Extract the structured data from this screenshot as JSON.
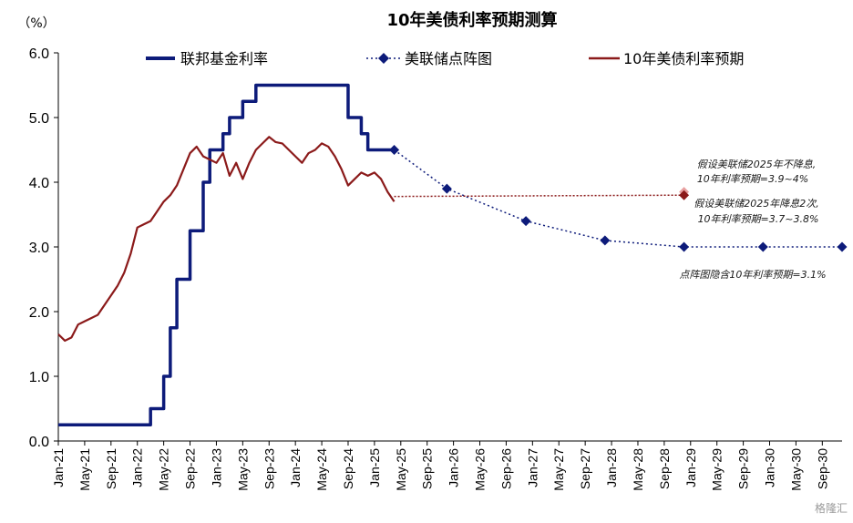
{
  "chart_data": {
    "type": "line",
    "title": "10年美债利率预期测算",
    "ylabel": "（%）",
    "ylim": [
      0,
      6
    ],
    "yticks": [
      "0.0",
      "1.0",
      "2.0",
      "3.0",
      "4.0",
      "5.0",
      "6.0"
    ],
    "x_range": [
      "2021-01",
      "2030-12"
    ],
    "xtick_labels": [
      "Jan-21",
      "May-21",
      "Sep-21",
      "Jan-22",
      "May-22",
      "Sep-22",
      "Jan-23",
      "May-23",
      "Sep-23",
      "Jan-24",
      "May-24",
      "Sep-24",
      "Jan-25",
      "May-25",
      "Sep-25",
      "Jan-26",
      "May-26",
      "Sep-26",
      "Jan-27",
      "May-27",
      "Sep-27",
      "Jan-28",
      "May-28",
      "Sep-28",
      "Jan-29",
      "May-29",
      "Sep-29",
      "Jan-30",
      "May-30",
      "Sep-30"
    ],
    "legend_placement": "top",
    "grid": false,
    "series": [
      {
        "name": "联邦基金利率",
        "color": "#0d1b7a",
        "style": "solid-step",
        "points": [
          [
            "2021-01",
            0.25
          ],
          [
            "2022-03",
            0.25
          ],
          [
            "2022-03",
            0.5
          ],
          [
            "2022-05",
            0.5
          ],
          [
            "2022-05",
            1.0
          ],
          [
            "2022-06",
            1.0
          ],
          [
            "2022-06",
            1.75
          ],
          [
            "2022-07",
            1.75
          ],
          [
            "2022-07",
            2.5
          ],
          [
            "2022-09",
            2.5
          ],
          [
            "2022-09",
            3.25
          ],
          [
            "2022-11",
            3.25
          ],
          [
            "2022-11",
            4.0
          ],
          [
            "2022-12",
            4.0
          ],
          [
            "2022-12",
            4.5
          ],
          [
            "2023-02",
            4.5
          ],
          [
            "2023-02",
            4.75
          ],
          [
            "2023-03",
            4.75
          ],
          [
            "2023-03",
            5.0
          ],
          [
            "2023-05",
            5.0
          ],
          [
            "2023-05",
            5.25
          ],
          [
            "2023-07",
            5.25
          ],
          [
            "2023-07",
            5.5
          ],
          [
            "2024-09",
            5.5
          ],
          [
            "2024-09",
            5.0
          ],
          [
            "2024-11",
            5.0
          ],
          [
            "2024-11",
            4.75
          ],
          [
            "2024-12",
            4.75
          ],
          [
            "2024-12",
            4.5
          ],
          [
            "2025-04",
            4.5
          ]
        ]
      },
      {
        "name": "美联储点阵图",
        "color": "#0d1b7a",
        "style": "dotted-diamond",
        "points": [
          [
            "2025-04",
            4.5
          ],
          [
            "2025-12",
            3.9
          ],
          [
            "2026-12",
            3.4
          ],
          [
            "2027-12",
            3.1
          ],
          [
            "2028-12",
            3.0
          ],
          [
            "2029-12",
            3.0
          ],
          [
            "2030-12",
            3.0
          ]
        ]
      },
      {
        "name": "10年美债利率预期",
        "color": "#8b1a1a",
        "style": "solid",
        "points": [
          [
            "2021-01",
            1.65
          ],
          [
            "2021-02",
            1.55
          ],
          [
            "2021-03",
            1.6
          ],
          [
            "2021-04",
            1.8
          ],
          [
            "2021-05",
            1.85
          ],
          [
            "2021-06",
            1.9
          ],
          [
            "2021-07",
            1.95
          ],
          [
            "2021-08",
            2.1
          ],
          [
            "2021-09",
            2.25
          ],
          [
            "2021-10",
            2.4
          ],
          [
            "2021-11",
            2.6
          ],
          [
            "2021-12",
            2.9
          ],
          [
            "2022-01",
            3.3
          ],
          [
            "2022-02",
            3.35
          ],
          [
            "2022-03",
            3.4
          ],
          [
            "2022-04",
            3.55
          ],
          [
            "2022-05",
            3.7
          ],
          [
            "2022-06",
            3.8
          ],
          [
            "2022-07",
            3.95
          ],
          [
            "2022-08",
            4.2
          ],
          [
            "2022-09",
            4.45
          ],
          [
            "2022-10",
            4.55
          ],
          [
            "2022-11",
            4.4
          ],
          [
            "2022-12",
            4.35
          ],
          [
            "2023-01",
            4.3
          ],
          [
            "2023-02",
            4.45
          ],
          [
            "2023-03",
            4.1
          ],
          [
            "2023-04",
            4.3
          ],
          [
            "2023-05",
            4.05
          ],
          [
            "2023-06",
            4.3
          ],
          [
            "2023-07",
            4.5
          ],
          [
            "2023-08",
            4.6
          ],
          [
            "2023-09",
            4.7
          ],
          [
            "2023-10",
            4.62
          ],
          [
            "2023-11",
            4.6
          ],
          [
            "2023-12",
            4.5
          ],
          [
            "2024-01",
            4.4
          ],
          [
            "2024-02",
            4.3
          ],
          [
            "2024-03",
            4.45
          ],
          [
            "2024-04",
            4.5
          ],
          [
            "2024-05",
            4.6
          ],
          [
            "2024-06",
            4.55
          ],
          [
            "2024-07",
            4.4
          ],
          [
            "2024-08",
            4.2
          ],
          [
            "2024-09",
            3.95
          ],
          [
            "2024-10",
            4.05
          ],
          [
            "2024-11",
            4.15
          ],
          [
            "2024-12",
            4.1
          ],
          [
            "2025-01",
            4.15
          ],
          [
            "2025-02",
            4.05
          ],
          [
            "2025-03",
            3.85
          ],
          [
            "2025-04",
            3.7
          ]
        ]
      },
      {
        "name": "10年美债利率预期（假设）",
        "color": "#8b1a1a",
        "style": "dotted",
        "points": [
          [
            "2025-04",
            3.78
          ],
          [
            "2028-12",
            3.8
          ]
        ]
      }
    ],
    "markers": [
      {
        "x": "2028-12",
        "y": 3.85,
        "color": "#e8a0a0",
        "shape": "diamond"
      },
      {
        "x": "2028-12",
        "y": 3.8,
        "color": "#8b1a1a",
        "shape": "diamond"
      }
    ],
    "annotations": [
      {
        "lines": [
          "假设美联储2025年不降息,",
          "10年利率预期=3.9~4%"
        ]
      },
      {
        "lines": [
          "假设美联储2025年降息2次,",
          "10年利率预期=3.7~3.8%"
        ]
      },
      {
        "lines": [
          "点阵图隐含10年利率预期=3.1%"
        ]
      }
    ]
  },
  "watermark": "格隆汇"
}
